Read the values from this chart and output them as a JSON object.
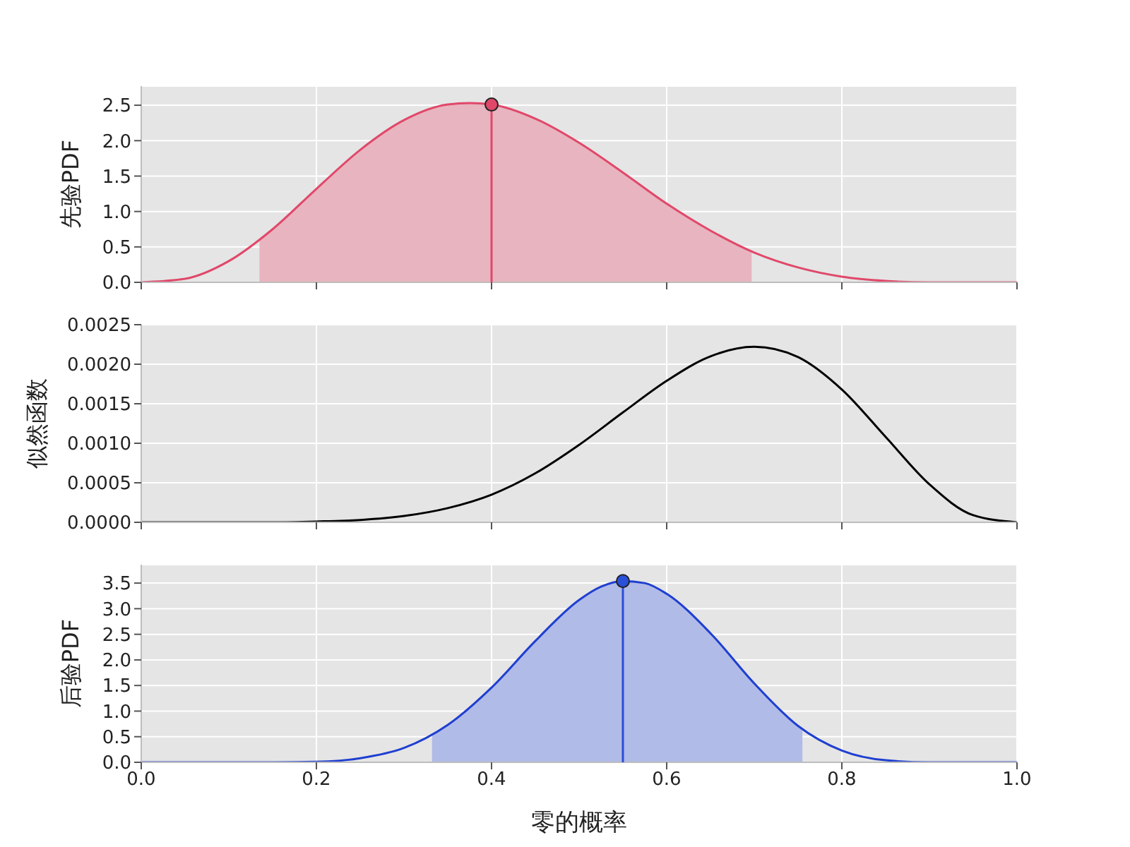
{
  "chart_data": [
    {
      "type": "line",
      "ylabel": "先验PDF",
      "tick_labels": "y",
      "grid": true,
      "xlim": [
        0,
        1
      ],
      "xticks": [
        0,
        0.2,
        0.4,
        0.6,
        0.8,
        1
      ],
      "ylim": [
        0,
        2.77
      ],
      "yticks": [
        {
          "value": 0,
          "label": "0.0"
        },
        0.5,
        {
          "value": 1,
          "label": "1.0"
        },
        1.5,
        {
          "value": 2,
          "label": "2.0"
        },
        2.5
      ],
      "series": [
        {
          "type": "area",
          "color": "#e8b4bf",
          "x": [
            0.135,
            0.15,
            0.2,
            0.25,
            0.3,
            0.35,
            0.375,
            0.4,
            0.45,
            0.5,
            0.55,
            0.6,
            0.65,
            0.697
          ],
          "values": [
            0.6,
            0.75,
            1.32,
            1.87,
            2.29,
            2.51,
            2.53,
            2.51,
            2.31,
            1.97,
            1.55,
            1.11,
            0.73,
            0.44
          ]
        },
        {
          "type": "line",
          "color": "#e0486a",
          "x": [
            0,
            0.05,
            0.1,
            0.15,
            0.2,
            0.25,
            0.3,
            0.35,
            0.375,
            0.4,
            0.45,
            0.5,
            0.55,
            0.6,
            0.65,
            0.7,
            0.75,
            0.8,
            0.85,
            0.9,
            0.95,
            1
          ],
          "values": [
            0,
            0.05,
            0.3,
            0.75,
            1.32,
            1.87,
            2.29,
            2.51,
            2.53,
            2.51,
            2.31,
            1.97,
            1.55,
            1.11,
            0.73,
            0.42,
            0.21,
            0.08,
            0.02,
            0,
            0,
            0
          ]
        },
        {
          "type": "lollipop",
          "color": "#e0486a",
          "x": [
            0.4
          ],
          "values": [
            2.51
          ]
        }
      ]
    },
    {
      "type": "line",
      "ylabel": "似然函数",
      "tick_labels": "y",
      "grid": true,
      "xlim": [
        0,
        1
      ],
      "xticks": [
        0,
        0.2,
        0.4,
        0.6,
        0.8,
        1
      ],
      "ylim": [
        0,
        0.0025
      ],
      "yticks": [
        {
          "value": 0,
          "label": "0.0000"
        },
        0.0005,
        {
          "value": 0.001,
          "label": "0.0010"
        },
        0.0015,
        {
          "value": 0.002,
          "label": "0.0020"
        },
        0.0025
      ],
      "series": [
        {
          "type": "line",
          "color": "#000000",
          "x": [
            0,
            0.05,
            0.1,
            0.15,
            0.2,
            0.25,
            0.3,
            0.35,
            0.4,
            0.45,
            0.5,
            0.55,
            0.6,
            0.65,
            0.7,
            0.75,
            0.8,
            0.85,
            0.9,
            0.95,
            1
          ],
          "values": [
            0,
            0,
            0,
            0,
            1e-05,
            3e-05,
            8e-05,
            0.00018,
            0.00035,
            0.00062,
            0.00098,
            0.00139,
            0.00179,
            0.0021,
            0.00222,
            0.00209,
            0.00168,
            0.00108,
            0.00048,
            9e-05,
            0
          ]
        }
      ]
    },
    {
      "type": "line",
      "ylabel": "后验PDF",
      "xlabel": "零的概率",
      "grid": true,
      "xlim": [
        0,
        1
      ],
      "xticks": [
        {
          "value": 0,
          "label": "0.0"
        },
        0.2,
        0.4,
        0.6,
        0.8,
        {
          "value": 1,
          "label": "1.0"
        }
      ],
      "ylim": [
        0,
        3.86
      ],
      "yticks": [
        {
          "value": 0,
          "label": "0.0"
        },
        0.5,
        {
          "value": 1,
          "label": "1.0"
        },
        1.5,
        {
          "value": 2,
          "label": "2.0"
        },
        2.5,
        {
          "value": 3,
          "label": "3.0"
        },
        3.5
      ],
      "series": [
        {
          "type": "area",
          "color": "#b1bbe8",
          "x": [
            0.332,
            0.35,
            0.4,
            0.45,
            0.5,
            0.525,
            0.55,
            0.575,
            0.6,
            0.65,
            0.7,
            0.755
          ],
          "values": [
            0.54,
            0.73,
            1.46,
            2.37,
            3.17,
            3.43,
            3.54,
            3.5,
            3.29,
            2.52,
            1.54,
            0.65
          ]
        },
        {
          "type": "line",
          "color": "#1f3fd0",
          "x": [
            0,
            0.05,
            0.1,
            0.15,
            0.2,
            0.25,
            0.3,
            0.35,
            0.4,
            0.45,
            0.5,
            0.525,
            0.55,
            0.575,
            0.6,
            0.65,
            0.7,
            0.75,
            0.8,
            0.85,
            0.9,
            0.95,
            1
          ],
          "values": [
            0,
            0,
            0,
            0,
            0.01,
            0.08,
            0.28,
            0.73,
            1.46,
            2.37,
            3.17,
            3.43,
            3.54,
            3.5,
            3.29,
            2.52,
            1.54,
            0.71,
            0.23,
            0.04,
            0,
            0,
            0
          ]
        },
        {
          "type": "lollipop",
          "color": "#2a50d8",
          "x": [
            0.55
          ],
          "values": [
            3.54
          ]
        }
      ]
    }
  ]
}
